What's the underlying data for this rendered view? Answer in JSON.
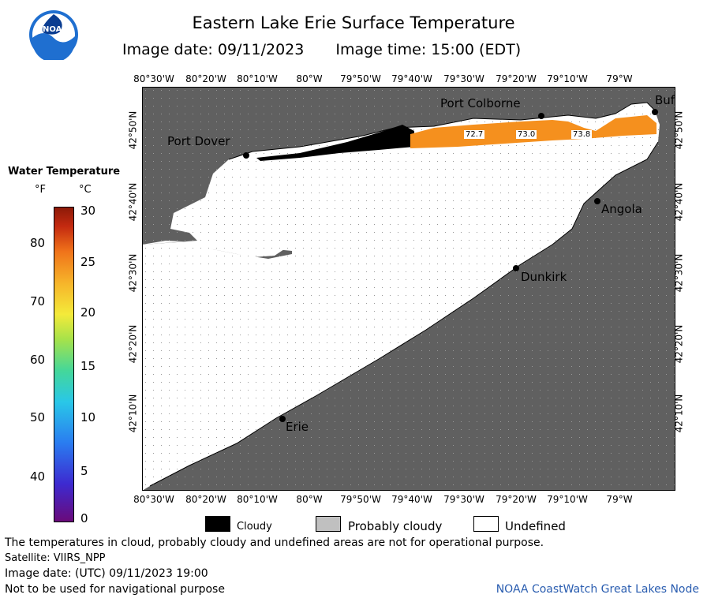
{
  "header": {
    "title": "Eastern Lake Erie Surface Temperature",
    "image_date": "Image date: 09/11/2023",
    "image_time": "Image time: 15:00 (EDT)",
    "logo_text": "NOAA"
  },
  "legend": {
    "title": "Water Temperature",
    "unit_f": "°F",
    "unit_c": "°C",
    "f_ticks": [
      "80",
      "70",
      "60",
      "50",
      "40"
    ],
    "c_ticks": [
      "30",
      "25",
      "20",
      "15",
      "10",
      "5",
      "0"
    ]
  },
  "map": {
    "lon_labels": [
      "80°30'W",
      "80°20'W",
      "80°10'W",
      "80°W",
      "79°50'W",
      "79°40'W",
      "79°30'W",
      "79°20'W",
      "79°10'W",
      "79°W"
    ],
    "lat_labels": [
      "42°50'N",
      "42°40'N",
      "42°30'N",
      "42°20'N",
      "42°10'N"
    ],
    "cities": [
      "Port Colborne",
      "Port Dover",
      "Angola",
      "Dunkirk",
      "Erie",
      "Buf"
    ],
    "temp_labels": [
      "72.7",
      "73.0",
      "73.8"
    ],
    "colors": {
      "land": "#606060",
      "cloud": "#000000",
      "warm": "#f5901e",
      "undefined": "#ffffff"
    }
  },
  "key": {
    "cloudy": "Cloudy",
    "probably_cloudy": "Probably cloudy",
    "undefined": "Undefined"
  },
  "footer": {
    "note": "The temperatures in cloud, probably cloudy and undefined areas are not for operational purpose.",
    "satellite": "Satellite: VIIRS_NPP",
    "utc_date": "Image date: (UTC) 09/11/2023  19:00",
    "nav_warning": "Not to be used for navigational purpose",
    "credit": "NOAA CoastWatch Great Lakes Node"
  }
}
